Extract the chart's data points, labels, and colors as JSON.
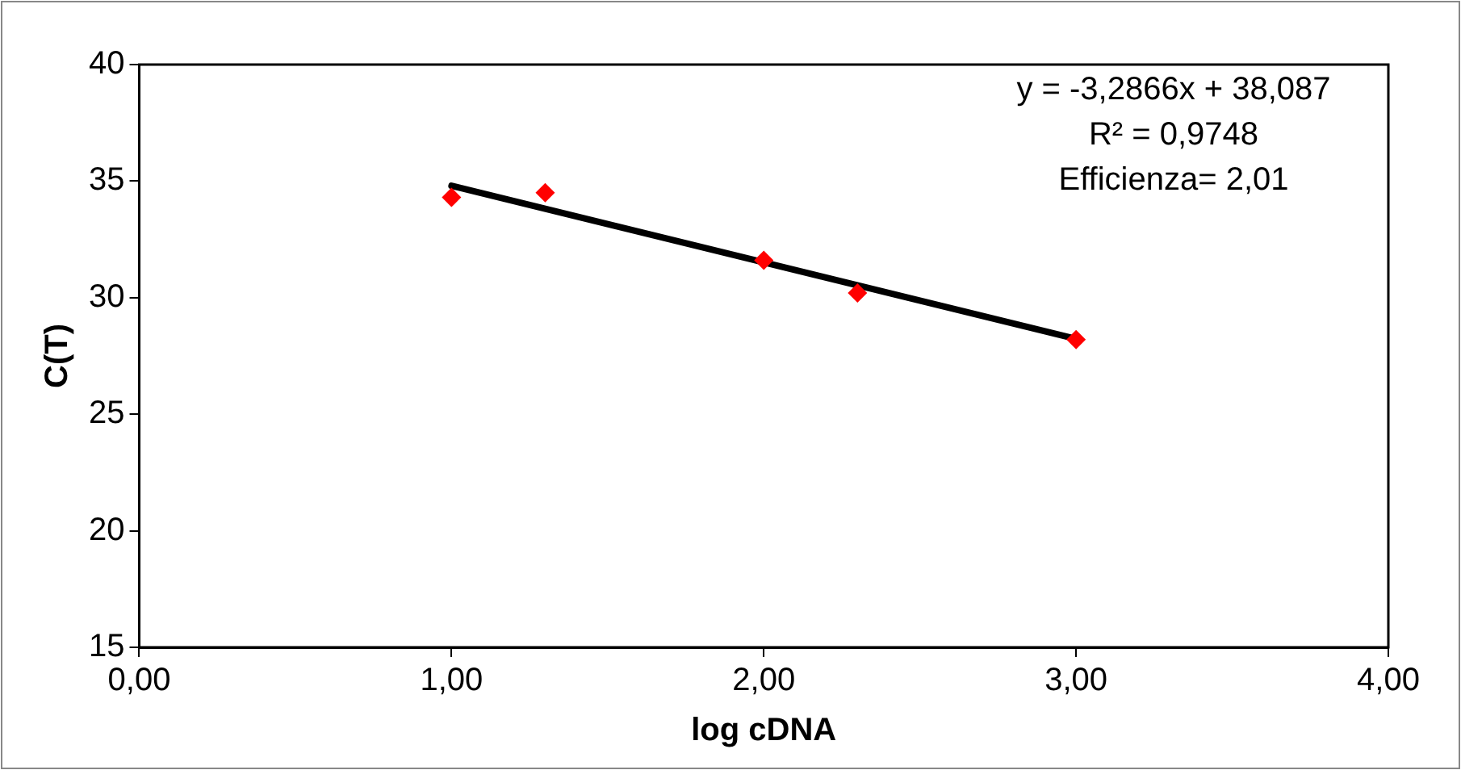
{
  "chart_data": {
    "type": "scatter",
    "xlabel": "log cDNA",
    "ylabel": "C(T)",
    "xlim": [
      0,
      4
    ],
    "xticks": [
      {
        "value": 0,
        "label": "0,00"
      },
      {
        "value": 1,
        "label": "1,00"
      },
      {
        "value": 2,
        "label": "2,00"
      },
      {
        "value": 3,
        "label": "3,00"
      },
      {
        "value": 4,
        "label": "4,00"
      }
    ],
    "ylim": [
      15,
      40
    ],
    "yticks": [
      15,
      20,
      25,
      30,
      35,
      40
    ],
    "grid": false,
    "legend": false,
    "marker": "diamond",
    "series": [
      {
        "color": "#ff0000",
        "x": [
          1,
          1.3,
          2,
          2.3,
          3
        ],
        "values": [
          34.3,
          34.5,
          31.6,
          30.2,
          28.2
        ]
      },
      {
        "type": "line",
        "color": "#000000",
        "x": [
          1,
          3
        ],
        "values": [
          34.8,
          28.23
        ],
        "marker": "none",
        "line_style": "solid"
      }
    ],
    "annotations": [
      "y = -3,2866x + 38,087",
      "R² = 0,9748",
      "Efficienza= 2,01"
    ]
  }
}
